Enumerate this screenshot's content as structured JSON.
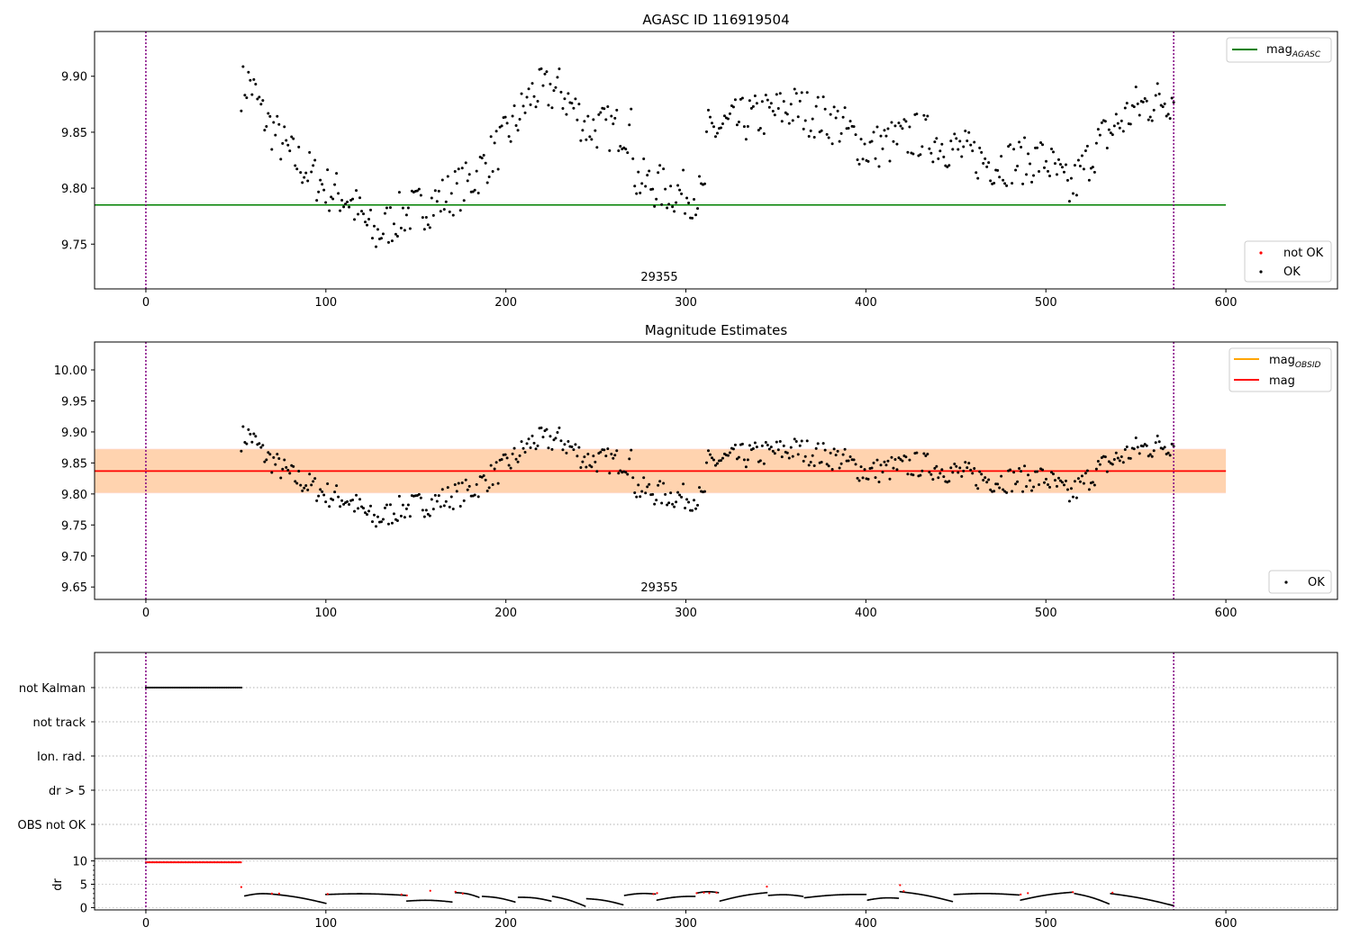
{
  "chart_data": [
    {
      "type": "scatter",
      "title": "AGASC ID 116919504",
      "xlabel": "",
      "ylabel": "",
      "xlim": [
        -28.5,
        662
      ],
      "ylim": [
        9.71,
        9.94
      ],
      "xticks": [
        0,
        100,
        200,
        300,
        400,
        500,
        600
      ],
      "yticks": [
        9.75,
        9.8,
        9.85,
        9.9
      ],
      "ytick_labels": [
        "9.75",
        "9.80",
        "9.85",
        "9.90"
      ],
      "obs_start": 0,
      "obs_end": 571,
      "obsid_label": "29355",
      "mag_agasc": 9.785,
      "mag_agasc_xrange": [
        -28.5,
        600
      ],
      "legend_upper": [
        {
          "label": "mag",
          "subscript": "AGASC",
          "color": "#008000"
        }
      ],
      "legend_lower": [
        {
          "label": "not OK",
          "color": "#ff0000"
        },
        {
          "label": "OK",
          "color": "#000000"
        }
      ],
      "series": [
        {
          "name": "OK",
          "color": "#000000",
          "x_start": 53,
          "x_end": 571,
          "count": 520,
          "anchors_x": [
            53,
            58,
            65,
            80,
            100,
            113,
            127,
            140,
            160,
            180,
            200,
            215,
            230,
            245,
            270,
            272,
            290,
            310,
            312,
            330,
            360,
            385,
            400,
            430,
            470,
            500,
            513,
            530,
            550,
            571
          ],
          "anchors_y": [
            9.89,
            9.895,
            9.865,
            9.83,
            9.8,
            9.79,
            9.757,
            9.775,
            9.787,
            9.805,
            9.845,
            9.885,
            9.888,
            9.855,
            9.852,
            9.808,
            9.798,
            9.792,
            9.85,
            9.86,
            9.872,
            9.858,
            9.835,
            9.848,
            9.822,
            9.826,
            9.797,
            9.842,
            9.872,
            9.882
          ]
        },
        {
          "name": "not OK",
          "color": "#ff0000",
          "values": []
        }
      ]
    },
    {
      "type": "scatter",
      "title": "Magnitude Estimates",
      "xlabel": "",
      "ylabel": "",
      "xlim": [
        -28.5,
        662
      ],
      "ylim": [
        9.63,
        10.045
      ],
      "xticks": [
        0,
        100,
        200,
        300,
        400,
        500,
        600
      ],
      "yticks": [
        9.65,
        9.7,
        9.75,
        9.8,
        9.85,
        9.9,
        9.95,
        10.0
      ],
      "ytick_labels": [
        "9.65",
        "9.70",
        "9.75",
        "9.80",
        "9.85",
        "9.90",
        "9.95",
        "10.00"
      ],
      "obs_start": 0,
      "obs_end": 571,
      "obsid_label": "29355",
      "mag": 9.837,
      "mag_band": [
        9.801,
        9.873
      ],
      "mag_obsid": 9.837,
      "mag_obsid_band": [
        9.802,
        9.872
      ],
      "band_xrange": [
        -28.5,
        600
      ],
      "legend_upper": [
        {
          "label": "mag",
          "subscript": "OBSID",
          "color": "#ffa500"
        },
        {
          "label": "mag",
          "subscript": "",
          "color": "#ff0000"
        }
      ],
      "legend_lower": [
        {
          "label": "OK",
          "color": "#000000"
        }
      ],
      "series": [
        {
          "name": "OK",
          "color": "#000000",
          "x_start": 53,
          "x_end": 571,
          "count": 520,
          "same_as": "panel1"
        }
      ]
    },
    {
      "type": "scatter",
      "title": "",
      "xlim": [
        -28.5,
        662
      ],
      "categories": [
        "not Kalman",
        "not track",
        "Ion. rad.",
        "dr > 5",
        "OBS not OK"
      ],
      "flag_series": [
        {
          "category": "not Kalman",
          "x_start": 0,
          "x_end": 53,
          "color": "#000000"
        }
      ],
      "obs_start": 0,
      "obs_end": 571
    },
    {
      "type": "scatter",
      "title": "",
      "ylabel": "dr",
      "xlim": [
        -28.5,
        662
      ],
      "ylim": [
        -0.5,
        10.5
      ],
      "xticks": [
        0,
        100,
        200,
        300,
        400,
        500,
        600
      ],
      "yticks": [
        0,
        5,
        10
      ],
      "minor_yticks": [
        1,
        2,
        3,
        4,
        6,
        7,
        8,
        9
      ],
      "obs_start": 0,
      "obs_end": 571,
      "saturated": {
        "x_start": 0,
        "x_end": 53,
        "value": 9.7,
        "color": "#ff0000"
      },
      "segments": [
        {
          "x0": 55,
          "x1": 70,
          "y0": 2.5,
          "y1": 2.9
        },
        {
          "x0": 70,
          "x1": 100,
          "y0": 2.9,
          "y1": 0.9
        },
        {
          "x0": 100,
          "x1": 145,
          "y0": 2.8,
          "y1": 2.6
        },
        {
          "x0": 145,
          "x1": 170,
          "y0": 1.4,
          "y1": 1.2
        },
        {
          "x0": 172,
          "x1": 185,
          "y0": 3.2,
          "y1": 2.2
        },
        {
          "x0": 187,
          "x1": 205,
          "y0": 2.4,
          "y1": 1.2
        },
        {
          "x0": 207,
          "x1": 225,
          "y0": 2.2,
          "y1": 1.4
        },
        {
          "x0": 226,
          "x1": 244,
          "y0": 2.4,
          "y1": 0.3
        },
        {
          "x0": 245,
          "x1": 265,
          "y0": 1.9,
          "y1": 0.6
        },
        {
          "x0": 266,
          "x1": 283,
          "y0": 2.6,
          "y1": 2.9
        },
        {
          "x0": 284,
          "x1": 305,
          "y0": 1.6,
          "y1": 2.4
        },
        {
          "x0": 306,
          "x1": 318,
          "y0": 3.1,
          "y1": 3.2
        },
        {
          "x0": 319,
          "x1": 345,
          "y0": 1.4,
          "y1": 3.2
        },
        {
          "x0": 346,
          "x1": 365,
          "y0": 2.6,
          "y1": 2.4
        },
        {
          "x0": 366,
          "x1": 400,
          "y0": 2.1,
          "y1": 2.8
        },
        {
          "x0": 401,
          "x1": 418,
          "y0": 1.6,
          "y1": 2.0
        },
        {
          "x0": 419,
          "x1": 448,
          "y0": 3.4,
          "y1": 1.3
        },
        {
          "x0": 449,
          "x1": 485,
          "y0": 2.8,
          "y1": 2.7
        },
        {
          "x0": 486,
          "x1": 515,
          "y0": 1.6,
          "y1": 3.3
        },
        {
          "x0": 516,
          "x1": 535,
          "y0": 3.0,
          "y1": 0.8
        },
        {
          "x0": 536,
          "x1": 571,
          "y0": 3.0,
          "y1": 0.4
        }
      ],
      "red_points": [
        [
          53,
          4.4
        ],
        [
          70,
          3.0
        ],
        [
          74,
          3.0
        ],
        [
          101,
          2.9
        ],
        [
          142,
          2.8
        ],
        [
          145,
          2.6
        ],
        [
          158,
          3.6
        ],
        [
          172,
          3.4
        ],
        [
          176,
          3.0
        ],
        [
          282,
          2.9
        ],
        [
          284,
          3.1
        ],
        [
          306,
          3.1
        ],
        [
          310,
          3.2
        ],
        [
          313,
          3.1
        ],
        [
          317,
          3.2
        ],
        [
          345,
          4.5
        ],
        [
          419,
          4.8
        ],
        [
          421,
          3.5
        ],
        [
          486,
          2.8
        ],
        [
          490,
          3.1
        ],
        [
          515,
          3.3
        ],
        [
          537,
          3.2
        ]
      ]
    }
  ]
}
